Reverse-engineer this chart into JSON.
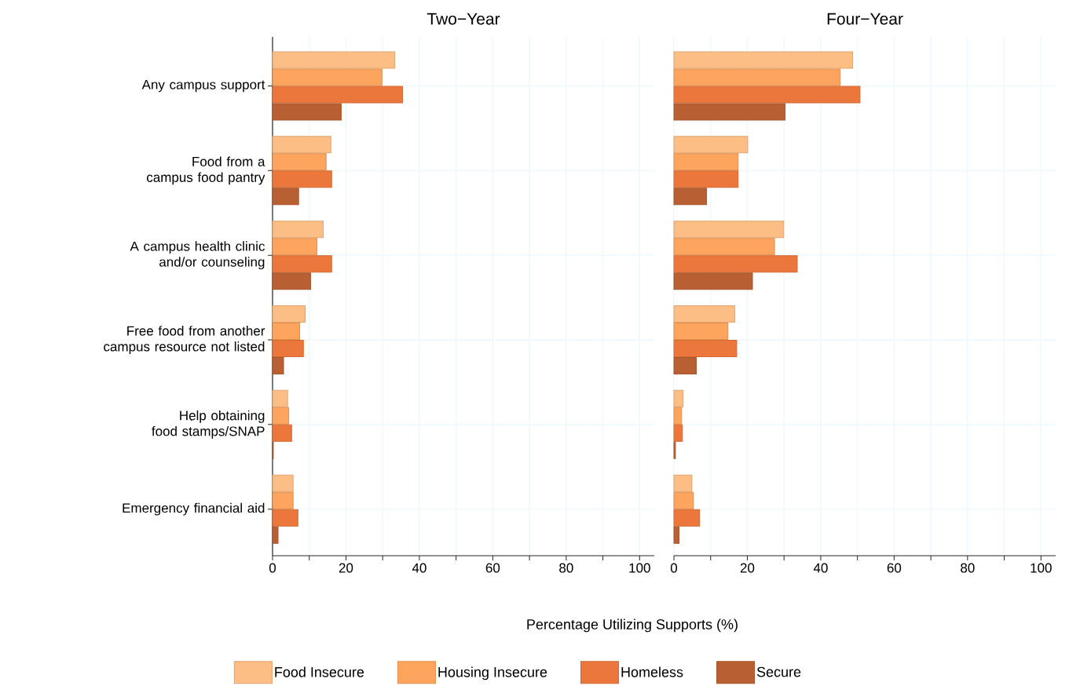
{
  "chart_data": [
    {
      "type": "bar",
      "orientation": "horizontal",
      "title": "Two−Year",
      "xlabel": "Percentage Utilizing Supports (%)",
      "categories": [
        "Any campus support",
        "Food from a campus food pantry",
        "A campus health clinic and/or counseling",
        "Free food from another campus resource not listed",
        "Help obtaining food stamps/SNAP",
        "Emergency financial aid"
      ],
      "series": [
        {
          "name": "Food Insecure",
          "color": "#fdbe86",
          "values": [
            33.3,
            15.9,
            13.8,
            8.9,
            4.1,
            5.6
          ]
        },
        {
          "name": "Housing Insecure",
          "color": "#fda45f",
          "values": [
            29.8,
            14.6,
            12.1,
            7.4,
            4.4,
            5.6
          ]
        },
        {
          "name": "Homeless",
          "color": "#ec773c",
          "values": [
            35.4,
            16.1,
            16.1,
            8.4,
            5.2,
            6.9
          ]
        },
        {
          "name": "Secure",
          "color": "#b85f33",
          "values": [
            18.7,
            7.1,
            10.4,
            3.0,
            0.2,
            1.5
          ]
        }
      ],
      "xlim": [
        0,
        104
      ],
      "xticks": [
        0,
        {
          "value": 10,
          "label": null
        },
        20,
        {
          "value": 30,
          "label": null
        },
        40,
        {
          "value": 50,
          "label": null
        },
        60,
        {
          "value": 70,
          "label": null
        },
        80,
        {
          "value": 90,
          "label": null
        },
        100
      ],
      "grid": true,
      "legend": "bottom"
    },
    {
      "type": "bar",
      "orientation": "horizontal",
      "title": "Four−Year",
      "categories": [
        null,
        null,
        null,
        null,
        null,
        null
      ],
      "series": [
        {
          "color": "#fdbe86",
          "values": [
            48.7,
            20.1,
            29.9,
            16.6,
            2.5,
            4.9
          ]
        },
        {
          "color": "#fda45f",
          "values": [
            45.3,
            17.5,
            27.4,
            14.7,
            2.1,
            5.3
          ]
        },
        {
          "color": "#ec773c",
          "values": [
            50.7,
            17.5,
            33.6,
            17.1,
            2.3,
            7.0
          ]
        },
        {
          "color": "#b85f33",
          "values": [
            30.3,
            8.9,
            21.4,
            6.1,
            0.4,
            1.4
          ]
        }
      ],
      "xlim": [
        0,
        104
      ],
      "xticks": [
        0,
        {
          "value": 10,
          "label": null
        },
        20,
        {
          "value": 30,
          "label": null
        },
        40,
        {
          "value": 50,
          "label": null
        },
        60,
        {
          "value": 70,
          "label": null
        },
        80,
        {
          "value": 90,
          "label": null
        },
        100
      ],
      "grid": true
    }
  ]
}
